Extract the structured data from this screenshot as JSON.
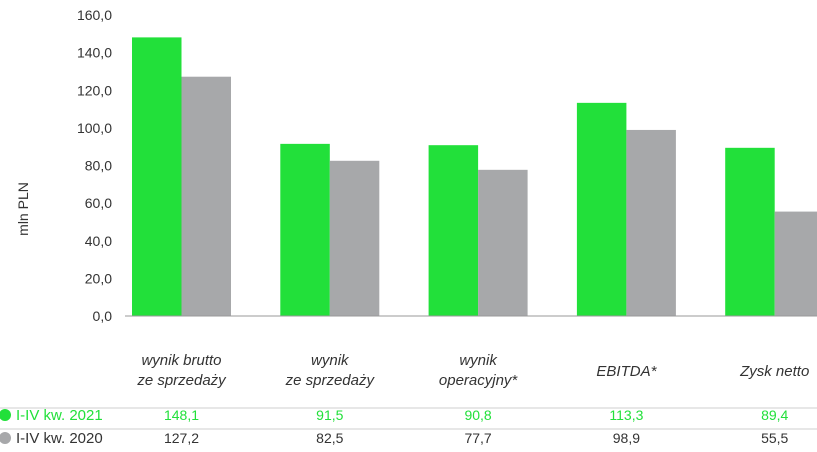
{
  "chart_data": {
    "type": "bar",
    "ylabel": "mln PLN",
    "ylim": [
      0,
      160
    ],
    "yticks": [
      "0,0",
      "20,0",
      "40,0",
      "60,0",
      "80,0",
      "100,0",
      "120,0",
      "140,0",
      "160,0"
    ],
    "categories": [
      [
        "wynik brutto",
        "ze sprzedaży"
      ],
      [
        "wynik",
        "ze sprzedaży"
      ],
      [
        "wynik",
        "operacyjny*"
      ],
      [
        "EBITDA*"
      ],
      [
        "Zysk netto"
      ]
    ],
    "series": [
      {
        "name": "I-IV kw. 2021",
        "color": "#22e03a",
        "values": [
          148.1,
          91.5,
          90.8,
          113.3,
          89.4
        ],
        "labels": [
          "148,1",
          "91,5",
          "90,8",
          "113,3",
          "89,4"
        ]
      },
      {
        "name": "I-IV kw. 2020",
        "color": "#a7a8aa",
        "values": [
          127.2,
          82.5,
          77.7,
          98.9,
          55.5
        ],
        "labels": [
          "127,2",
          "82,5",
          "77,7",
          "98,9",
          "55,5"
        ]
      }
    ],
    "legend": "data-table-bottom",
    "grid": false
  }
}
